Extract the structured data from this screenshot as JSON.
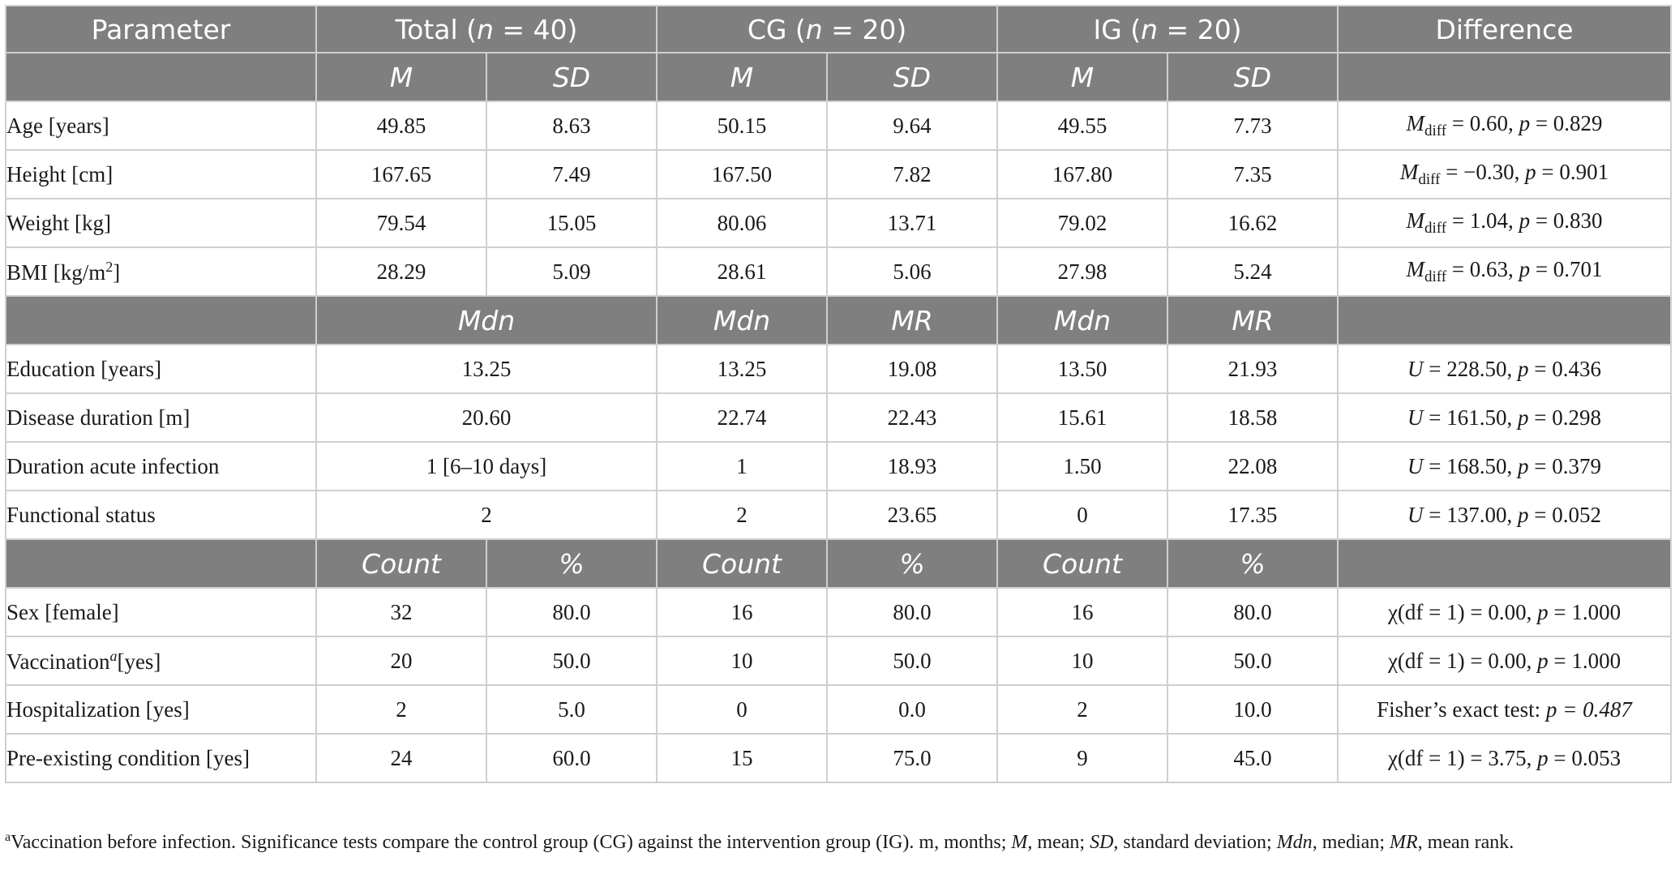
{
  "header": {
    "parameter": "Parameter",
    "total_label": "Total (",
    "total_n": "n",
    "total_count": " = 40)",
    "cg_label": "CG (",
    "cg_n": "n",
    "cg_count": " = 20)",
    "ig_label": "IG (",
    "ig_n": "n",
    "ig_count": " = 20)",
    "difference": "Difference"
  },
  "subheaders": {
    "continuous": [
      "M",
      "SD",
      "M",
      "SD",
      "M",
      "SD"
    ],
    "ordinal": [
      "Mdn",
      "Mdn",
      "MR",
      "Mdn",
      "MR"
    ],
    "categorical": [
      "Count",
      "%",
      "Count",
      "%",
      "Count",
      "%"
    ]
  },
  "continuous_rows": [
    {
      "label": "Age [years]",
      "values": [
        "49.85",
        "8.63",
        "50.15",
        "9.64",
        "49.55",
        "7.73"
      ],
      "diff_symbol": "M",
      "diff_sub": "diff",
      "diff_eq": " = 0.60, ",
      "diff_p": "p",
      "diff_p_val": " = 0.829"
    },
    {
      "label": "Height [cm]",
      "values": [
        "167.65",
        "7.49",
        "167.50",
        "7.82",
        "167.80",
        "7.35"
      ],
      "diff_symbol": "M",
      "diff_sub": "diff",
      "diff_eq": " = −0.30, ",
      "diff_p": "p",
      "diff_p_val": " = 0.901"
    },
    {
      "label": "Weight [kg]",
      "values": [
        "79.54",
        "15.05",
        "80.06",
        "13.71",
        "79.02",
        "16.62"
      ],
      "diff_symbol": "M",
      "diff_sub": "diff",
      "diff_eq": " = 1.04, ",
      "diff_p": "p",
      "diff_p_val": " = 0.830"
    },
    {
      "label": "BMI [kg/m",
      "label_sup": "2",
      "label_end": "]",
      "values": [
        "28.29",
        "5.09",
        "28.61",
        "5.06",
        "27.98",
        "5.24"
      ],
      "diff_symbol": "M",
      "diff_sub": "diff",
      "diff_eq": " = 0.63, ",
      "diff_p": "p",
      "diff_p_val": " = 0.701"
    }
  ],
  "ordinal_rows": [
    {
      "label": "Education [years]",
      "values": [
        "13.25",
        "13.25",
        "19.08",
        "13.50",
        "21.93"
      ],
      "diff_symbol": "U",
      "diff_eq": " = 228.50, ",
      "diff_p": "p",
      "diff_p_val": " = 0.436"
    },
    {
      "label": "Disease duration [m]",
      "values": [
        "20.60",
        "22.74",
        "22.43",
        "15.61",
        "18.58"
      ],
      "diff_symbol": "U",
      "diff_eq": " = 161.50, ",
      "diff_p": "p",
      "diff_p_val": " = 0.298"
    },
    {
      "label": "Duration acute infection",
      "values": [
        "1 [6–10 days]",
        "1",
        "18.93",
        "1.50",
        "22.08"
      ],
      "diff_symbol": "U",
      "diff_eq": " = 168.50, ",
      "diff_p": "p",
      "diff_p_val": " = 0.379"
    },
    {
      "label": "Functional status",
      "values": [
        "2",
        "2",
        "23.65",
        "0",
        "17.35"
      ],
      "diff_symbol": "U",
      "diff_eq": " = 137.00, ",
      "diff_p": "p",
      "diff_p_val": " = 0.052"
    }
  ],
  "categorical_rows": [
    {
      "label": "Sex [female]",
      "values": [
        "32",
        "80.0",
        "16",
        "80.0",
        "16",
        "80.0"
      ],
      "diff_pre": "χ(df = 1) = 0.00, ",
      "diff_p": "p",
      "diff_post": " = 1.000"
    },
    {
      "label": "Vaccination",
      "label_sup": "a",
      "label_end": "[yes]",
      "values": [
        "20",
        "50.0",
        "10",
        "50.0",
        "10",
        "50.0"
      ],
      "diff_pre": "χ(df = 1) = 0.00, ",
      "diff_p": "p",
      "diff_post": " = 1.000"
    },
    {
      "label": "Hospitalization [yes]",
      "values": [
        "2",
        "5.0",
        "0",
        "0.0",
        "2",
        "10.0"
      ],
      "diff_pre": "Fisher’s exact test: ",
      "diff_p": "p = 0.487",
      "diff_post": ""
    },
    {
      "label": "Pre-existing condition [yes]",
      "values": [
        "24",
        "60.0",
        "15",
        "75.0",
        "9",
        "45.0"
      ],
      "diff_pre": "χ(df = 1) = 3.75, ",
      "diff_p": "p",
      "diff_post": " = 0.053"
    }
  ],
  "footnote": {
    "marker": "a",
    "part1": "Vaccination before infection. Significance tests compare the control group (CG) against the intervention group (IG). m, months; ",
    "M": "M",
    "part2": ", mean; ",
    "SD": "SD",
    "part3": ", standard deviation; ",
    "Mdn": "Mdn",
    "part4": ", median; ",
    "MR": "MR",
    "part5": ", mean rank."
  }
}
